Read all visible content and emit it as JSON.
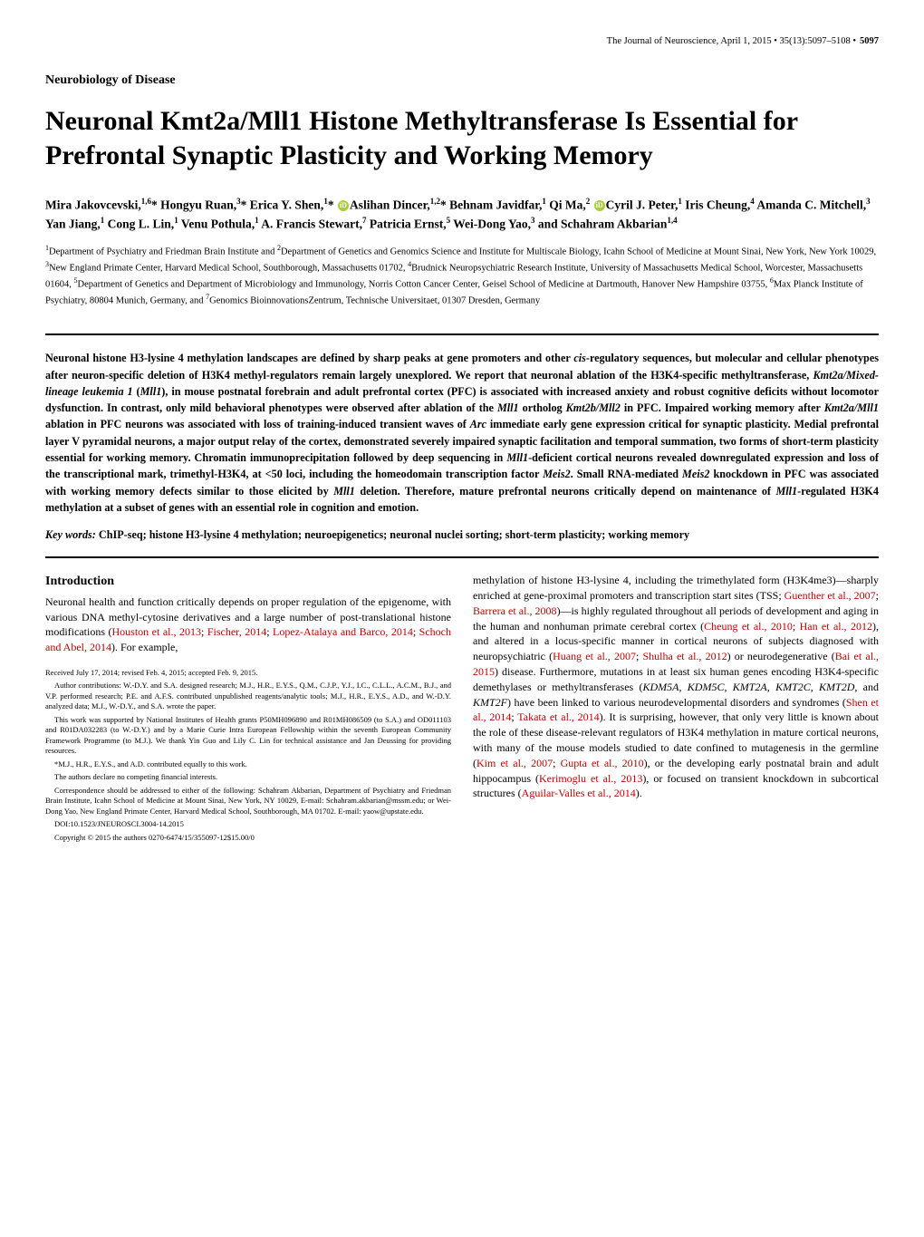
{
  "header": {
    "journal": "The Journal of Neuroscience, April 1, 2015 • 35(13):5097–5108 • ",
    "pages": "5097"
  },
  "section_label": "Neurobiology of Disease",
  "title": "Neuronal Kmt2a/Mll1 Histone Methyltransferase Is Essential for Prefrontal Synaptic Plasticity and Working Memory",
  "authors_html": "Mira Jakovcevski,<sup>1,6</sup>* Hongyu Ruan,<sup>3</sup>* Erica Y. Shen,<sup>1</sup>* <span class='orcid' data-name='orcid-icon' data-interactable='false'></span>Aslihan Dincer,<sup>1,2</sup>* Behnam Javidfar,<sup>1</sup> Qi Ma,<sup>2</sup> <span class='orcid' data-name='orcid-icon' data-interactable='false'></span>Cyril J. Peter,<sup>1</sup> Iris Cheung,<sup>4</sup> Amanda C. Mitchell,<sup>3</sup> Yan Jiang,<sup>1</sup> Cong L. Lin,<sup>1</sup> Venu Pothula,<sup>1</sup> A. Francis Stewart,<sup>7</sup> Patricia Ernst,<sup>5</sup> Wei-Dong Yao,<sup>3</sup> and Schahram Akbarian<sup>1,4</sup>",
  "affiliations_html": "<sup>1</sup>Department of Psychiatry and Friedman Brain Institute and <sup>2</sup>Department of Genetics and Genomics Science and Institute for Multiscale Biology, Icahn School of Medicine at Mount Sinai, New York, New York 10029, <sup>3</sup>New England Primate Center, Harvard Medical School, Southborough, Massachusetts 01702, <sup>4</sup>Brudnick Neuropsychiatric Research Institute, University of Massachusetts Medical School, Worcester, Massachusetts 01604, <sup>5</sup>Department of Genetics and Department of Microbiology and Immunology, Norris Cotton Cancer Center, Geisel School of Medicine at Dartmouth, Hanover New Hampshire 03755, <sup>6</sup>Max Planck Institute of Psychiatry, 80804 Munich, Germany, and <sup>7</sup>Genomics BioinnovationsZentrum, Technische Universitaet, 01307 Dresden, Germany",
  "abstract_html": "Neuronal histone H3-lysine 4 methylation landscapes are defined by sharp peaks at gene promoters and other <em>cis</em>-regulatory sequences, but molecular and cellular phenotypes after neuron-specific deletion of H3K4 methyl-regulators remain largely unexplored. We report that neuronal ablation of the H3K4-specific methyltransferase, <em>Kmt2a/Mixed-lineage leukemia 1</em> (<em>Mll1</em>), in mouse postnatal forebrain and adult prefrontal cortex (PFC) is associated with increased anxiety and robust cognitive deficits without locomotor dysfunction. In contrast, only mild behavioral phenotypes were observed after ablation of the <em>Mll1</em> ortholog <em>Kmt2b/Mll2</em> in PFC. Impaired working memory after <em>Kmt2a/Mll1</em> ablation in PFC neurons was associated with loss of training-induced transient waves of <em>Arc</em> immediate early gene expression critical for synaptic plasticity. Medial prefrontal layer V pyramidal neurons, a major output relay of the cortex, demonstrated severely impaired synaptic facilitation and temporal summation, two forms of short-term plasticity essential for working memory. Chromatin immunoprecipitation followed by deep sequencing in <em>Mll1</em>-deficient cortical neurons revealed downregulated expression and loss of the transcriptional mark, trimethyl-H3K4, at <50 loci, including the homeodomain transcription factor <em>Meis2</em>. Small RNA-mediated <em>Meis2</em> knockdown in PFC was associated with working memory defects similar to those elicited by <em>Mll1</em> deletion. Therefore, mature prefrontal neurons critically depend on maintenance of <em>Mll1</em>-regulated H3K4 methylation at a subset of genes with an essential role in cognition and emotion.",
  "keywords_label": "Key words:",
  "keywords_text": " ChIP-seq; histone H3-lysine 4 methylation; neuroepigenetics; neuronal nuclei sorting; short-term plasticity; working memory",
  "intro_heading": "Introduction",
  "col_left_html": "Neuronal health and function critically depends on proper regulation of the epigenome, with various DNA methyl-cytosine derivatives and a large number of post-translational histone modifications (<span class='ref'>Houston et al., 2013</span>; <span class='ref'>Fischer, 2014</span>; <span class='ref'>Lopez-Atalaya and Barco, 2014</span>; <span class='ref'>Schoch and Abel, 2014</span>). For example,",
  "footnotes": {
    "received": "Received July 17, 2014; revised Feb. 4, 2015; accepted Feb. 9, 2015.",
    "contributions": "Author contributions: W.-D.Y. and S.A. designed research; M.J., H.R., E.Y.S., Q.M., C.J.P., Y.J., I.C., C.L.L., A.C.M., B.J., and V.P. performed research; P.E. and A.F.S. contributed unpublished reagents/analytic tools; M.J., H.R., E.Y.S., A.D., and W.-D.Y. analyzed data; M.J., W.-D.Y., and S.A. wrote the paper.",
    "funding": "This work was supported by National Institutes of Health grants P50MH096890 and R01MH086509 (to S.A.) and OD011103 and R01DA032283 (to W.-D.Y.) and by a Marie Curie Intra European Fellowship within the seventh European Community Framework Programme (to M.J.). We thank Yin Guo and Lily C. Lin for technical assistance and Jan Deussing for providing resources.",
    "equal": "*M.J., H.R., E.Y.S., and A.D. contributed equally to this work.",
    "coi": "The authors declare no competing financial interests.",
    "correspondence": "Correspondence should be addressed to either of the following: Schahram Akbarian, Department of Psychiatry and Friedman Brain Institute, Icahn School of Medicine at Mount Sinai, New York, NY 10029, E-mail: Schahram.akbarian@mssm.edu; or Wei-Dong Yao, New England Primate Center, Harvard Medical School, Southborough, MA 01702. E-mail: yaow@upstate.edu.",
    "doi": "DOI:10.1523/JNEUROSCI.3004-14.2015",
    "copyright": "Copyright © 2015 the authors    0270-6474/15/355097-12$15.00/0"
  },
  "col_right_html": "methylation of histone H3-lysine 4, including the trimethylated form (H3K4me3)—sharply enriched at gene-proximal promoters and transcription start sites (TSS; <span class='ref'>Guenther et al., 2007</span>; <span class='ref'>Barrera et al., 2008</span>)—is highly regulated throughout all periods of development and aging in the human and nonhuman primate cerebral cortex (<span class='ref'>Cheung et al., 2010</span>; <span class='ref'>Han et al., 2012</span>), and altered in a locus-specific manner in cortical neurons of subjects diagnosed with neuropsychiatric (<span class='ref'>Huang et al., 2007</span>; <span class='ref'>Shulha et al., 2012</span>) or neurodegenerative (<span class='ref'>Bai et al., 2015</span>) disease. Furthermore, mutations in at least six human genes encoding H3K4-specific demethylases or methyltransferases (<em>KDM5A</em>, <em>KDM5C</em>, <em>KMT2A</em>, <em>KMT2C</em>, <em>KMT2D</em>, and <em>KMT2F</em>) have been linked to various neurodevelopmental disorders and syndromes (<span class='ref'>Shen et al., 2014</span>; <span class='ref'>Takata et al., 2014</span>). It is surprising, however, that only very little is known about the role of these disease-relevant regulators of H3K4 methylation in mature cortical neurons, with many of the mouse models studied to date confined to mutagenesis in the germline (<span class='ref'>Kim et al., 2007</span>; <span class='ref'>Gupta et al., 2010</span>), or the developing early postnatal brain and adult hippocampus (<span class='ref'>Kerimoglu et al., 2013</span>), or focused on transient knockdown in subcortical structures (<span class='ref'>Aguilar-Valles et al., 2014</span>)."
}
